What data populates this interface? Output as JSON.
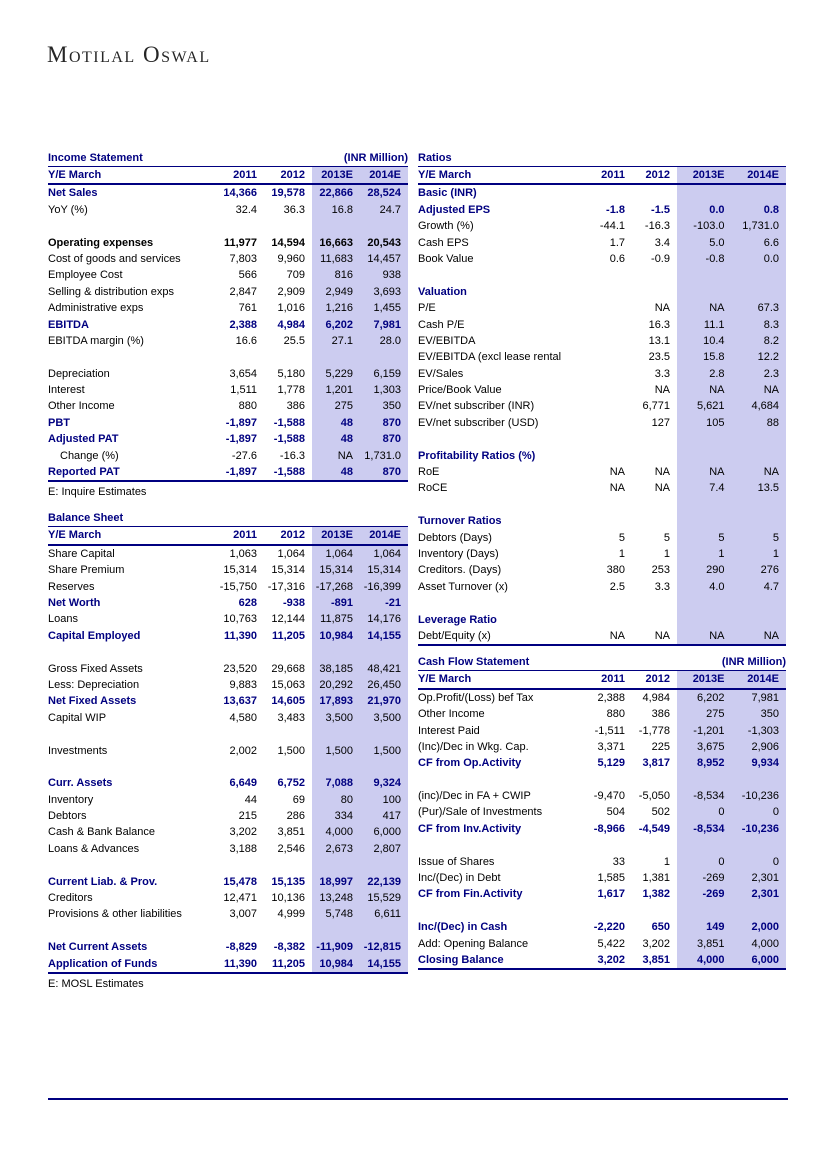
{
  "colors": {
    "navy": "#000080",
    "highlight": "#CCCCF0"
  },
  "logo": {
    "text": "Motilal Oswal"
  },
  "income_statement": {
    "title": "Income Statement",
    "unit": "(INR Million)",
    "header": [
      "Y/E March",
      "2011",
      "2012",
      "2013E",
      "2014E"
    ],
    "rows": [
      {
        "label": "Net Sales",
        "values": [
          "14,366",
          "19,578",
          "22,866",
          "28,524"
        ],
        "style": "bold-navy"
      },
      {
        "label": "YoY (%)",
        "values": [
          "32.4",
          "36.3",
          "16.8",
          "24.7"
        ],
        "style": "normal"
      },
      {
        "style": "spacer"
      },
      {
        "label": "Operating expenses",
        "values": [
          "11,977",
          "14,594",
          "16,663",
          "20,543"
        ],
        "style": "bold-black"
      },
      {
        "label": "Cost of goods and services",
        "values": [
          "7,803",
          "9,960",
          "11,683",
          "14,457"
        ],
        "style": "normal"
      },
      {
        "label": "Employee Cost",
        "values": [
          "566",
          "709",
          "816",
          "938"
        ],
        "style": "normal"
      },
      {
        "label": "Selling & distribution exps",
        "values": [
          "2,847",
          "2,909",
          "2,949",
          "3,693"
        ],
        "style": "normal"
      },
      {
        "label": "Administrative exps",
        "values": [
          "761",
          "1,016",
          "1,216",
          "1,455"
        ],
        "style": "normal"
      },
      {
        "label": "EBITDA",
        "values": [
          "2,388",
          "4,984",
          "6,202",
          "7,981"
        ],
        "style": "bold-navy"
      },
      {
        "label": "EBITDA margin (%)",
        "values": [
          "16.6",
          "25.5",
          "27.1",
          "28.0"
        ],
        "style": "normal"
      },
      {
        "style": "spacer"
      },
      {
        "label": "Depreciation",
        "values": [
          "3,654",
          "5,180",
          "5,229",
          "6,159"
        ],
        "style": "normal"
      },
      {
        "label": "Interest",
        "values": [
          "1,511",
          "1,778",
          "1,201",
          "1,303"
        ],
        "style": "normal"
      },
      {
        "label": "Other Income",
        "values": [
          "880",
          "386",
          "275",
          "350"
        ],
        "style": "normal"
      },
      {
        "label": "PBT",
        "values": [
          "-1,897",
          "-1,588",
          "48",
          "870"
        ],
        "style": "bold-navy"
      },
      {
        "label": "Adjusted PAT",
        "values": [
          "-1,897",
          "-1,588",
          "48",
          "870"
        ],
        "style": "bold-navy"
      },
      {
        "label": "Change (%)",
        "values": [
          "-27.6",
          "-16.3",
          "NA",
          "1,731.0"
        ],
        "style": "normal",
        "indent": true
      },
      {
        "label": "Reported PAT",
        "values": [
          "-1,897",
          "-1,588",
          "48",
          "870"
        ],
        "style": "bold-navy"
      }
    ],
    "footnote": "E: Inquire Estimates"
  },
  "balance_sheet": {
    "title": "Balance Sheet",
    "header": [
      "Y/E March",
      "2011",
      "2012",
      "2013E",
      "2014E"
    ],
    "rows": [
      {
        "label": "Share Capital",
        "values": [
          "1,063",
          "1,064",
          "1,064",
          "1,064"
        ],
        "style": "normal"
      },
      {
        "label": "Share Premium",
        "values": [
          "15,314",
          "15,314",
          "15,314",
          "15,314"
        ],
        "style": "normal"
      },
      {
        "label": "Reserves",
        "values": [
          "-15,750",
          "-17,316",
          "-17,268",
          "-16,399"
        ],
        "style": "normal"
      },
      {
        "label": "Net Worth",
        "values": [
          "628",
          "-938",
          "-891",
          "-21"
        ],
        "style": "bold-navy"
      },
      {
        "label": "Loans",
        "values": [
          "10,763",
          "12,144",
          "11,875",
          "14,176"
        ],
        "style": "normal"
      },
      {
        "label": "Capital Employed",
        "values": [
          "11,390",
          "11,205",
          "10,984",
          "14,155"
        ],
        "style": "bold-navy"
      },
      {
        "style": "spacer"
      },
      {
        "label": "Gross Fixed Assets",
        "values": [
          "23,520",
          "29,668",
          "38,185",
          "48,421"
        ],
        "style": "normal"
      },
      {
        "label": "Less: Depreciation",
        "values": [
          "9,883",
          "15,063",
          "20,292",
          "26,450"
        ],
        "style": "normal"
      },
      {
        "label": "Net Fixed Assets",
        "values": [
          "13,637",
          "14,605",
          "17,893",
          "21,970"
        ],
        "style": "bold-navy"
      },
      {
        "label": "Capital WIP",
        "values": [
          "4,580",
          "3,483",
          "3,500",
          "3,500"
        ],
        "style": "normal"
      },
      {
        "style": "spacer"
      },
      {
        "label": "Investments",
        "values": [
          "2,002",
          "1,500",
          "1,500",
          "1,500"
        ],
        "style": "normal"
      },
      {
        "style": "spacer"
      },
      {
        "label": "Curr. Assets",
        "values": [
          "6,649",
          "6,752",
          "7,088",
          "9,324"
        ],
        "style": "bold-navy"
      },
      {
        "label": "Inventory",
        "values": [
          "44",
          "69",
          "80",
          "100"
        ],
        "style": "normal"
      },
      {
        "label": "Debtors",
        "values": [
          "215",
          "286",
          "334",
          "417"
        ],
        "style": "normal"
      },
      {
        "label": "Cash & Bank Balance",
        "values": [
          "3,202",
          "3,851",
          "4,000",
          "6,000"
        ],
        "style": "normal"
      },
      {
        "label": "Loans & Advances",
        "values": [
          "3,188",
          "2,546",
          "2,673",
          "2,807"
        ],
        "style": "normal"
      },
      {
        "style": "spacer"
      },
      {
        "label": "Current Liab. & Prov.",
        "values": [
          "15,478",
          "15,135",
          "18,997",
          "22,139"
        ],
        "style": "bold-navy"
      },
      {
        "label": "Creditors",
        "values": [
          "12,471",
          "10,136",
          "13,248",
          "15,529"
        ],
        "style": "normal"
      },
      {
        "label": "Provisions & other liabilities",
        "values": [
          "3,007",
          "4,999",
          "5,748",
          "6,611"
        ],
        "style": "normal"
      },
      {
        "style": "spacer"
      },
      {
        "label": "Net Current  Assets",
        "values": [
          "-8,829",
          "-8,382",
          "-11,909",
          "-12,815"
        ],
        "style": "bold-navy"
      },
      {
        "label": "Application of Funds",
        "values": [
          "11,390",
          "11,205",
          "10,984",
          "14,155"
        ],
        "style": "bold-navy"
      }
    ],
    "footnote": "E: MOSL Estimates"
  },
  "ratios": {
    "title": "Ratios",
    "header": [
      "Y/E March",
      "2011",
      "2012",
      "2013E",
      "2014E"
    ],
    "rows": [
      {
        "label": "Basic (INR)",
        "style": "section"
      },
      {
        "label": "Adjusted EPS",
        "values": [
          "-1.8",
          "-1.5",
          "0.0",
          "0.8"
        ],
        "style": "bold-navy"
      },
      {
        "label": "Growth (%)",
        "values": [
          "-44.1",
          "-16.3",
          "-103.0",
          "1,731.0"
        ],
        "style": "normal"
      },
      {
        "label": "Cash EPS",
        "values": [
          "1.7",
          "3.4",
          "5.0",
          "6.6"
        ],
        "style": "normal"
      },
      {
        "label": "Book Value",
        "values": [
          "0.6",
          "-0.9",
          "-0.8",
          "0.0"
        ],
        "style": "normal"
      },
      {
        "style": "spacer"
      },
      {
        "label": "Valuation",
        "style": "section"
      },
      {
        "label": "P/E",
        "values": [
          "",
          "NA",
          "NA",
          "67.3"
        ],
        "style": "normal"
      },
      {
        "label": "Cash P/E",
        "values": [
          "",
          "16.3",
          "11.1",
          "8.3"
        ],
        "style": "normal"
      },
      {
        "label": "EV/EBITDA",
        "values": [
          "",
          "13.1",
          "10.4",
          "8.2"
        ],
        "style": "normal"
      },
      {
        "label": "EV/EBITDA (excl lease rental",
        "values": [
          "",
          "23.5",
          "15.8",
          "12.2"
        ],
        "style": "normal"
      },
      {
        "label": "EV/Sales",
        "values": [
          "",
          "3.3",
          "2.8",
          "2.3"
        ],
        "style": "normal"
      },
      {
        "label": "Price/Book Value",
        "values": [
          "",
          "NA",
          "NA",
          "NA"
        ],
        "style": "normal"
      },
      {
        "label": "EV/net subscriber (INR)",
        "values": [
          "",
          "6,771",
          "5,621",
          "4,684"
        ],
        "style": "normal"
      },
      {
        "label": "EV/net subscriber (USD)",
        "values": [
          "",
          "127",
          "105",
          "88"
        ],
        "style": "normal"
      },
      {
        "style": "spacer"
      },
      {
        "label": "Profitability Ratios (%)",
        "style": "section"
      },
      {
        "label": "RoE",
        "values": [
          "NA",
          "NA",
          "NA",
          "NA"
        ],
        "style": "normal"
      },
      {
        "label": "RoCE",
        "values": [
          "NA",
          "NA",
          "7.4",
          "13.5"
        ],
        "style": "normal"
      },
      {
        "style": "spacer"
      },
      {
        "label": "Turnover Ratios",
        "style": "section"
      },
      {
        "label": "Debtors (Days)",
        "values": [
          "5",
          "5",
          "5",
          "5"
        ],
        "style": "normal"
      },
      {
        "label": "Inventory (Days)",
        "values": [
          "1",
          "1",
          "1",
          "1"
        ],
        "style": "normal"
      },
      {
        "label": "Creditors. (Days)",
        "values": [
          "380",
          "253",
          "290",
          "276"
        ],
        "style": "normal"
      },
      {
        "label": "Asset Turnover (x)",
        "values": [
          "2.5",
          "3.3",
          "4.0",
          "4.7"
        ],
        "style": "normal"
      },
      {
        "style": "spacer"
      },
      {
        "label": "Leverage Ratio",
        "style": "section"
      },
      {
        "label": "Debt/Equity (x)",
        "values": [
          "NA",
          "NA",
          "NA",
          "NA"
        ],
        "style": "normal"
      }
    ]
  },
  "cash_flow": {
    "title": "Cash Flow Statement",
    "unit": "(INR Million)",
    "header": [
      "Y/E March",
      "2011",
      "2012",
      "2013E",
      "2014E"
    ],
    "rows": [
      {
        "label": "Op.Profit/(Loss) bef Tax",
        "values": [
          "2,388",
          "4,984",
          "6,202",
          "7,981"
        ],
        "style": "normal"
      },
      {
        "label": "Other Income",
        "values": [
          "880",
          "386",
          "275",
          "350"
        ],
        "style": "normal"
      },
      {
        "label": "Interest Paid",
        "values": [
          "-1,511",
          "-1,778",
          "-1,201",
          "-1,303"
        ],
        "style": "normal"
      },
      {
        "label": "(Inc)/Dec in Wkg. Cap.",
        "values": [
          "3,371",
          "225",
          "3,675",
          "2,906"
        ],
        "style": "normal"
      },
      {
        "label": "CF from Op.Activity",
        "values": [
          "5,129",
          "3,817",
          "8,952",
          "9,934"
        ],
        "style": "bold-navy"
      },
      {
        "style": "spacer"
      },
      {
        "label": "(inc)/Dec in FA + CWIP",
        "values": [
          "-9,470",
          "-5,050",
          "-8,534",
          "-10,236"
        ],
        "style": "normal"
      },
      {
        "label": "(Pur)/Sale of Investments",
        "values": [
          "504",
          "502",
          "0",
          "0"
        ],
        "style": "normal"
      },
      {
        "label": "CF from Inv.Activity",
        "values": [
          "-8,966",
          "-4,549",
          "-8,534",
          "-10,236"
        ],
        "style": "bold-navy"
      },
      {
        "style": "spacer"
      },
      {
        "label": "Issue of Shares",
        "values": [
          "33",
          "1",
          "0",
          "0"
        ],
        "style": "normal"
      },
      {
        "label": "Inc/(Dec) in Debt",
        "values": [
          "1,585",
          "1,381",
          "-269",
          "2,301"
        ],
        "style": "normal"
      },
      {
        "label": "CF from Fin.Activity",
        "values": [
          "1,617",
          "1,382",
          "-269",
          "2,301"
        ],
        "style": "bold-navy"
      },
      {
        "style": "spacer"
      },
      {
        "label": "Inc/(Dec) in Cash",
        "values": [
          "-2,220",
          "650",
          "149",
          "2,000"
        ],
        "style": "bold-navy"
      },
      {
        "label": "Add: Opening Balance",
        "values": [
          "5,422",
          "3,202",
          "3,851",
          "4,000"
        ],
        "style": "normal"
      },
      {
        "label": "Closing Balance",
        "values": [
          "3,202",
          "3,851",
          "4,000",
          "6,000"
        ],
        "style": "bold-navy"
      }
    ]
  }
}
